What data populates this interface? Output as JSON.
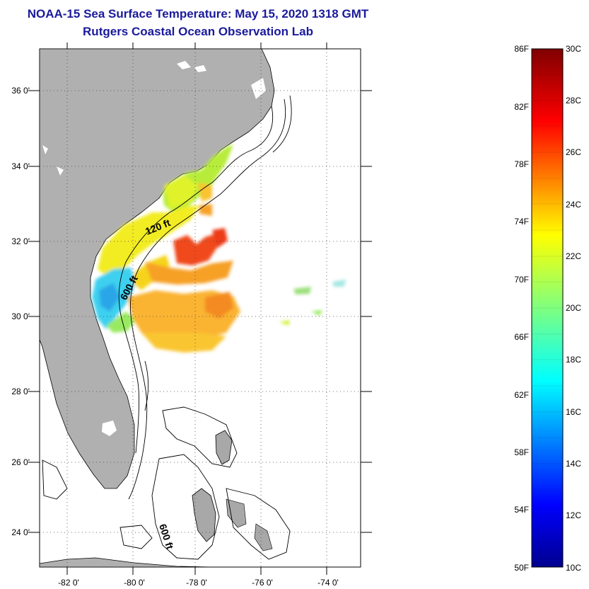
{
  "title_line1": "NOAA-15 Sea Surface Temperature:  May 15, 2020 1318 GMT",
  "title_line2": "Rutgers Coastal Ocean Observation Lab",
  "map": {
    "lat_labels": [
      "36 0'",
      "34 0'",
      "32 0'",
      "30 0'",
      "28 0'",
      "26 0'",
      "24 0'"
    ],
    "lon_labels": [
      "-82 0'",
      "-80 0'",
      "-78 0'",
      "-76 0'",
      "-74 0'"
    ],
    "contour_labels": [
      "120 ft",
      "600 ft",
      "600 ft"
    ],
    "colors": {
      "land": "#b0b0b0",
      "coastline": "#000000",
      "grid": "#333333"
    }
  },
  "colorbar": {
    "fahrenheit_labels": [
      "86F",
      "82F",
      "78F",
      "74F",
      "70F",
      "66F",
      "62F",
      "58F",
      "54F",
      "50F"
    ],
    "celsius_labels": [
      "30C",
      "28C",
      "26C",
      "24C",
      "22C",
      "20C",
      "18C",
      "16C",
      "14C",
      "12C",
      "10C"
    ],
    "range_celsius": [
      10,
      30
    ],
    "range_fahrenheit": [
      50,
      86
    ]
  }
}
